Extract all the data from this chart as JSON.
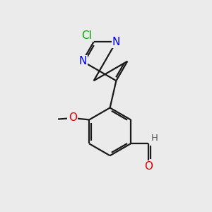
{
  "bg_color": "#ebebeb",
  "bond_color": "#1a1a1a",
  "bond_width": 1.6,
  "atom_colors": {
    "N": "#0000ee",
    "O": "#dd0000",
    "Cl": "#00aa00",
    "C": "#1a1a1a",
    "H": "#606060"
  },
  "font_size_atom": 11,
  "font_size_small": 9.5
}
